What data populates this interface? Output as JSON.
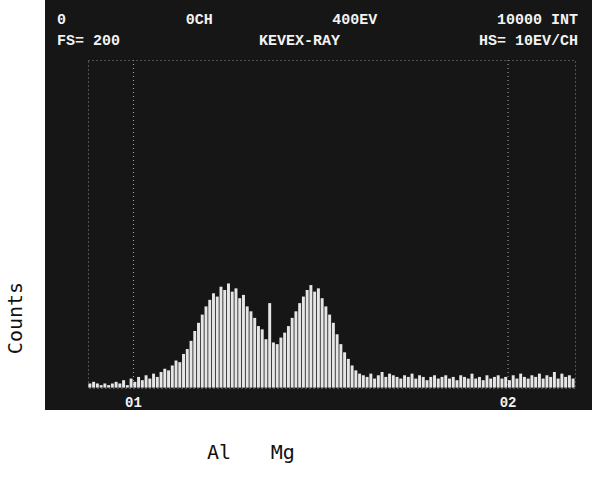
{
  "chart_data": {
    "type": "histogram",
    "header": [
      "0    0CH    400EV    10000 INT",
      "FS= 200   KEVEX-RAY   HS= 10EV/CH"
    ],
    "ylabel": "Counts",
    "bins": [
      0.88,
      0.89,
      0.9,
      0.91,
      0.92,
      0.93,
      0.94,
      0.95,
      0.96,
      0.97,
      0.98,
      0.99,
      1.0,
      1.01,
      1.02,
      1.03,
      1.04,
      1.05,
      1.06,
      1.07,
      1.08,
      1.09,
      1.1,
      1.11,
      1.12,
      1.13,
      1.14,
      1.15,
      1.16,
      1.17,
      1.18,
      1.19,
      1.2,
      1.21,
      1.22,
      1.23,
      1.24,
      1.25,
      1.26,
      1.27,
      1.28,
      1.29,
      1.3,
      1.31,
      1.32,
      1.33,
      1.34,
      1.35,
      1.36,
      1.37,
      1.38,
      1.39,
      1.4,
      1.41,
      1.42,
      1.43,
      1.44,
      1.45,
      1.46,
      1.47,
      1.48,
      1.49,
      1.5,
      1.51,
      1.52,
      1.53,
      1.54,
      1.55,
      1.56,
      1.57,
      1.58,
      1.59,
      1.6,
      1.61,
      1.62,
      1.63,
      1.64,
      1.65,
      1.66,
      1.67,
      1.68,
      1.69,
      1.7,
      1.71,
      1.72,
      1.73,
      1.74,
      1.75,
      1.76,
      1.77,
      1.78,
      1.79,
      1.8,
      1.81,
      1.82,
      1.83,
      1.84,
      1.85,
      1.86,
      1.87,
      1.88,
      1.89,
      1.9,
      1.91,
      1.92,
      1.93,
      1.94,
      1.95,
      1.96,
      1.97,
      1.98,
      1.99,
      2.0,
      2.01,
      2.02,
      2.03,
      2.04,
      2.05,
      2.06,
      2.07,
      2.08,
      2.09,
      2.1,
      2.11,
      2.12,
      2.13,
      2.14,
      2.15,
      2.16,
      2.17,
      2.18
    ],
    "values": [
      3,
      4,
      3,
      2,
      3,
      2,
      3,
      4,
      3,
      5,
      2,
      6,
      4,
      7,
      5,
      8,
      6,
      9,
      7,
      10,
      12,
      11,
      14,
      17,
      16,
      21,
      24,
      29,
      35,
      40,
      45,
      50,
      54,
      58,
      56,
      62,
      60,
      64,
      59,
      61,
      55,
      57,
      50,
      47,
      43,
      38,
      36,
      30,
      52,
      28,
      27,
      31,
      34,
      38,
      43,
      47,
      52,
      56,
      60,
      63,
      59,
      61,
      55,
      50,
      45,
      40,
      33,
      27,
      22,
      18,
      14,
      11,
      9,
      8,
      7,
      9,
      6,
      8,
      10,
      7,
      9,
      8,
      7,
      6,
      8,
      7,
      9,
      6,
      8,
      7,
      5,
      7,
      8,
      6,
      7,
      8,
      6,
      7,
      5,
      8,
      7,
      6,
      9,
      6,
      7,
      5,
      8,
      6,
      7,
      8,
      6,
      7,
      5,
      8,
      6,
      9,
      7,
      6,
      8,
      7,
      9,
      6,
      8,
      7,
      10,
      6,
      9,
      7,
      8,
      6
    ],
    "color": "#e6e6e6",
    "xlim": [
      0.88,
      2.18
    ],
    "xticks": [
      {
        "value": 1,
        "label": "01"
      },
      {
        "value": 2,
        "label": "02"
      }
    ],
    "ylim": [
      0,
      200
    ],
    "grid": true,
    "tick_labels": "x",
    "annotations": [
      {
        "text": "Al",
        "x": 1.23
      },
      {
        "text": "Mg",
        "x": 1.4
      }
    ]
  }
}
